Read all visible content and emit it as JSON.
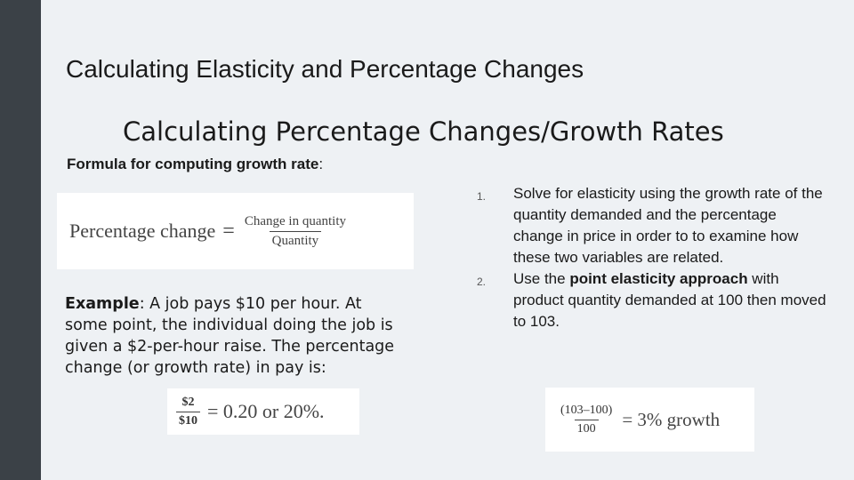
{
  "slide": {
    "title": "Calculating Elasticity and Percentage Changes",
    "subtitle": "Calculating Percentage Changes/Growth Rates",
    "formula_label": {
      "bold": "Formula for computing growth rate",
      "tail": ":"
    },
    "formula1": {
      "lhs": "Percentage change",
      "eq": "=",
      "numerator": "Change in quantity",
      "denominator": "Quantity"
    },
    "example": {
      "label": "Example",
      "text": ": A job pays $10 per hour. At some point, the individual doing the job is given a $2-per-hour raise. The percentage change (or growth rate) in pay is:"
    },
    "formula2": {
      "numerator": "$2",
      "denominator": "$10",
      "rhs": "= 0.20 or 20%."
    },
    "list": [
      {
        "marker": "1.",
        "text": "Solve for elasticity using the growth rate of the quantity demanded and the percentage change in price in order to to examine how these two variables are related."
      },
      {
        "marker": "2.",
        "pre": "Use the ",
        "bold": "point elasticity approach",
        "post": " with product quantity demanded at 100 then moved to 103."
      }
    ],
    "formula3": {
      "numerator": "(103–100)",
      "denominator": "100",
      "rhs": "= 3% growth"
    }
  }
}
